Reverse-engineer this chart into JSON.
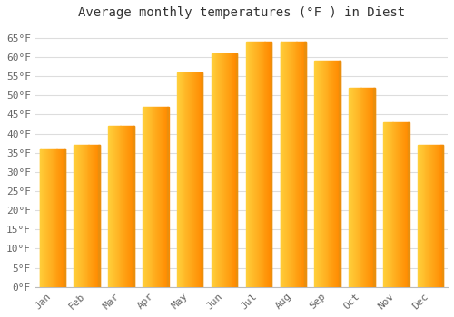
{
  "title": "Average monthly temperatures (°F ) in Diest",
  "months": [
    "Jan",
    "Feb",
    "Mar",
    "Apr",
    "May",
    "Jun",
    "Jul",
    "Aug",
    "Sep",
    "Oct",
    "Nov",
    "Dec"
  ],
  "values": [
    36,
    37,
    42,
    47,
    56,
    61,
    64,
    64,
    59,
    52,
    43,
    37
  ],
  "bar_color_left": "#FFD060",
  "bar_color_right": "#FFA010",
  "bar_edge_color": "#E89010",
  "yticks": [
    0,
    5,
    10,
    15,
    20,
    25,
    30,
    35,
    40,
    45,
    50,
    55,
    60,
    65
  ],
  "ylim": [
    0,
    68
  ],
  "bg_color": "#ffffff",
  "plot_bg_color": "#ffffff",
  "grid_color": "#dddddd",
  "title_fontsize": 10,
  "tick_fontsize": 8,
  "bar_width": 0.75
}
